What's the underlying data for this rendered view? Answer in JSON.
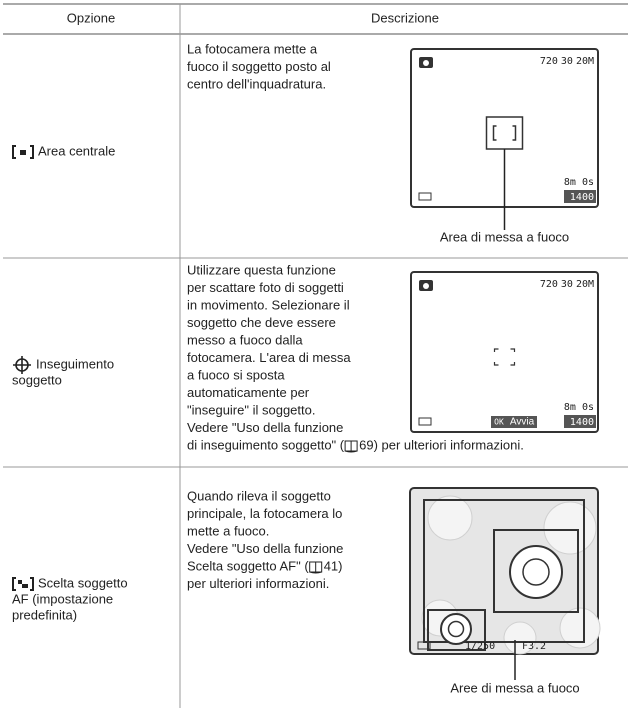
{
  "table": {
    "header": [
      "Opzione",
      "Descrizione"
    ],
    "rows": [
      {
        "option": [
          "Area centrale"
        ],
        "description": [
          "La fotocamera mette a",
          "fuoco il soggetto posto al",
          "centro dell'inquadratura."
        ],
        "screen": {
          "top_right": [
            "720",
            "30",
            "20M"
          ],
          "time": "8m 0s",
          "count": "1400"
        },
        "callout": "Area di messa a fuoco"
      },
      {
        "option": [
          "Inseguimento",
          "soggetto"
        ],
        "description": [
          "Utilizzare questa funzione",
          "per scattare foto di soggetti",
          "in movimento. Selezionare il",
          "soggetto che deve essere",
          "messo a fuoco dalla",
          "fotocamera. L'area di messa",
          "a fuoco si sposta",
          "automaticamente per",
          "\"inseguire\" il soggetto.",
          "Vedere \"Uso della funzione",
          {
            "before": "di inseguimento soggetto\" (",
            "after": "69) per ulteriori informazioni."
          }
        ],
        "screen": {
          "top_right": [
            "720",
            "30",
            "20M"
          ],
          "time": "8m 0s",
          "ok": "OK",
          "action": "Avvia",
          "count": "1400"
        }
      },
      {
        "option": [
          "Scelta soggetto",
          "AF (impostazione",
          "predefinita)"
        ],
        "description": [
          "Quando rileva il soggetto",
          "principale, la fotocamera lo",
          "mette a fuoco.",
          "Vedere \"Uso della funzione",
          {
            "before": "Scelta soggetto AF\" (",
            "after": "41)"
          },
          "per ulteriori informazioni."
        ],
        "screen": {
          "shutter": "1/250",
          "aperture": "F3.2"
        },
        "callout": "Aree di messa a fuoco"
      }
    ]
  }
}
